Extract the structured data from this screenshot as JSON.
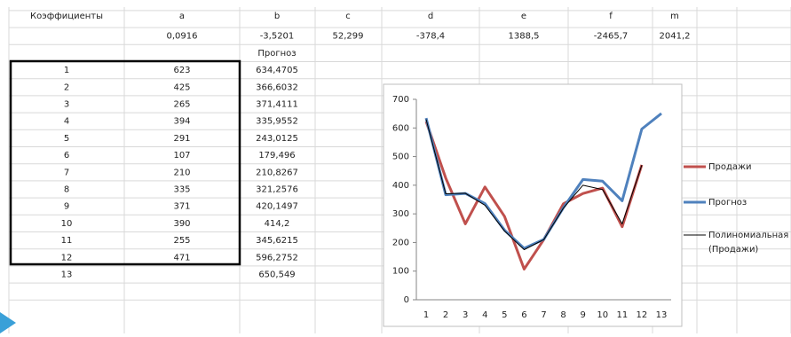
{
  "sheet": {
    "header": [
      "Коэффициенты",
      "a",
      "b",
      "c",
      "d",
      "e",
      "f",
      "m"
    ],
    "coefficients": [
      "0,0916",
      "-3,5201",
      "52,299",
      "-378,4",
      "1388,5",
      "-2465,7",
      "2041,2"
    ],
    "forecast_header": "Прогноз",
    "rows": [
      {
        "n": "1",
        "sales": "623",
        "forecast": "634,4705"
      },
      {
        "n": "2",
        "sales": "425",
        "forecast": "366,6032"
      },
      {
        "n": "3",
        "sales": "265",
        "forecast": "371,4111"
      },
      {
        "n": "4",
        "sales": "394",
        "forecast": "335,9552"
      },
      {
        "n": "5",
        "sales": "291",
        "forecast": "243,0125"
      },
      {
        "n": "6",
        "sales": "107",
        "forecast": "179,496"
      },
      {
        "n": "7",
        "sales": "210",
        "forecast": "210,8267"
      },
      {
        "n": "8",
        "sales": "335",
        "forecast": "321,2576"
      },
      {
        "n": "9",
        "sales": "371",
        "forecast": "420,1497"
      },
      {
        "n": "10",
        "sales": "390",
        "forecast": "414,2"
      },
      {
        "n": "11",
        "sales": "255",
        "forecast": "345,6215"
      },
      {
        "n": "12",
        "sales": "471",
        "forecast": "596,2752"
      },
      {
        "n": "13",
        "forecast": "650,549"
      }
    ]
  },
  "chart_data": {
    "type": "line",
    "categories": [
      1,
      2,
      3,
      4,
      5,
      6,
      7,
      8,
      9,
      10,
      11,
      12,
      13
    ],
    "ylim": [
      0,
      700
    ],
    "yticks": [
      0,
      100,
      200,
      300,
      400,
      500,
      600,
      700
    ],
    "series": [
      {
        "name": "Продажи",
        "color": "#c0504d",
        "width": 3,
        "values": [
          623,
          425,
          265,
          394,
          291,
          107,
          210,
          335,
          371,
          390,
          255,
          471,
          null
        ]
      },
      {
        "name": "Прогноз",
        "color": "#4f81bd",
        "width": 3,
        "values": [
          634.4705,
          366.6032,
          371.4111,
          335.9552,
          243.0125,
          179.496,
          210.8267,
          321.2576,
          420.1497,
          414.2,
          345.6215,
          596.2752,
          650.549
        ]
      },
      {
        "name": "Полиномиальная (Продажи)",
        "color": "#000000",
        "width": 1,
        "values": [
          630,
          370,
          372,
          330,
          240,
          175,
          210,
          320,
          400,
          385,
          265,
          470,
          null
        ]
      }
    ]
  }
}
